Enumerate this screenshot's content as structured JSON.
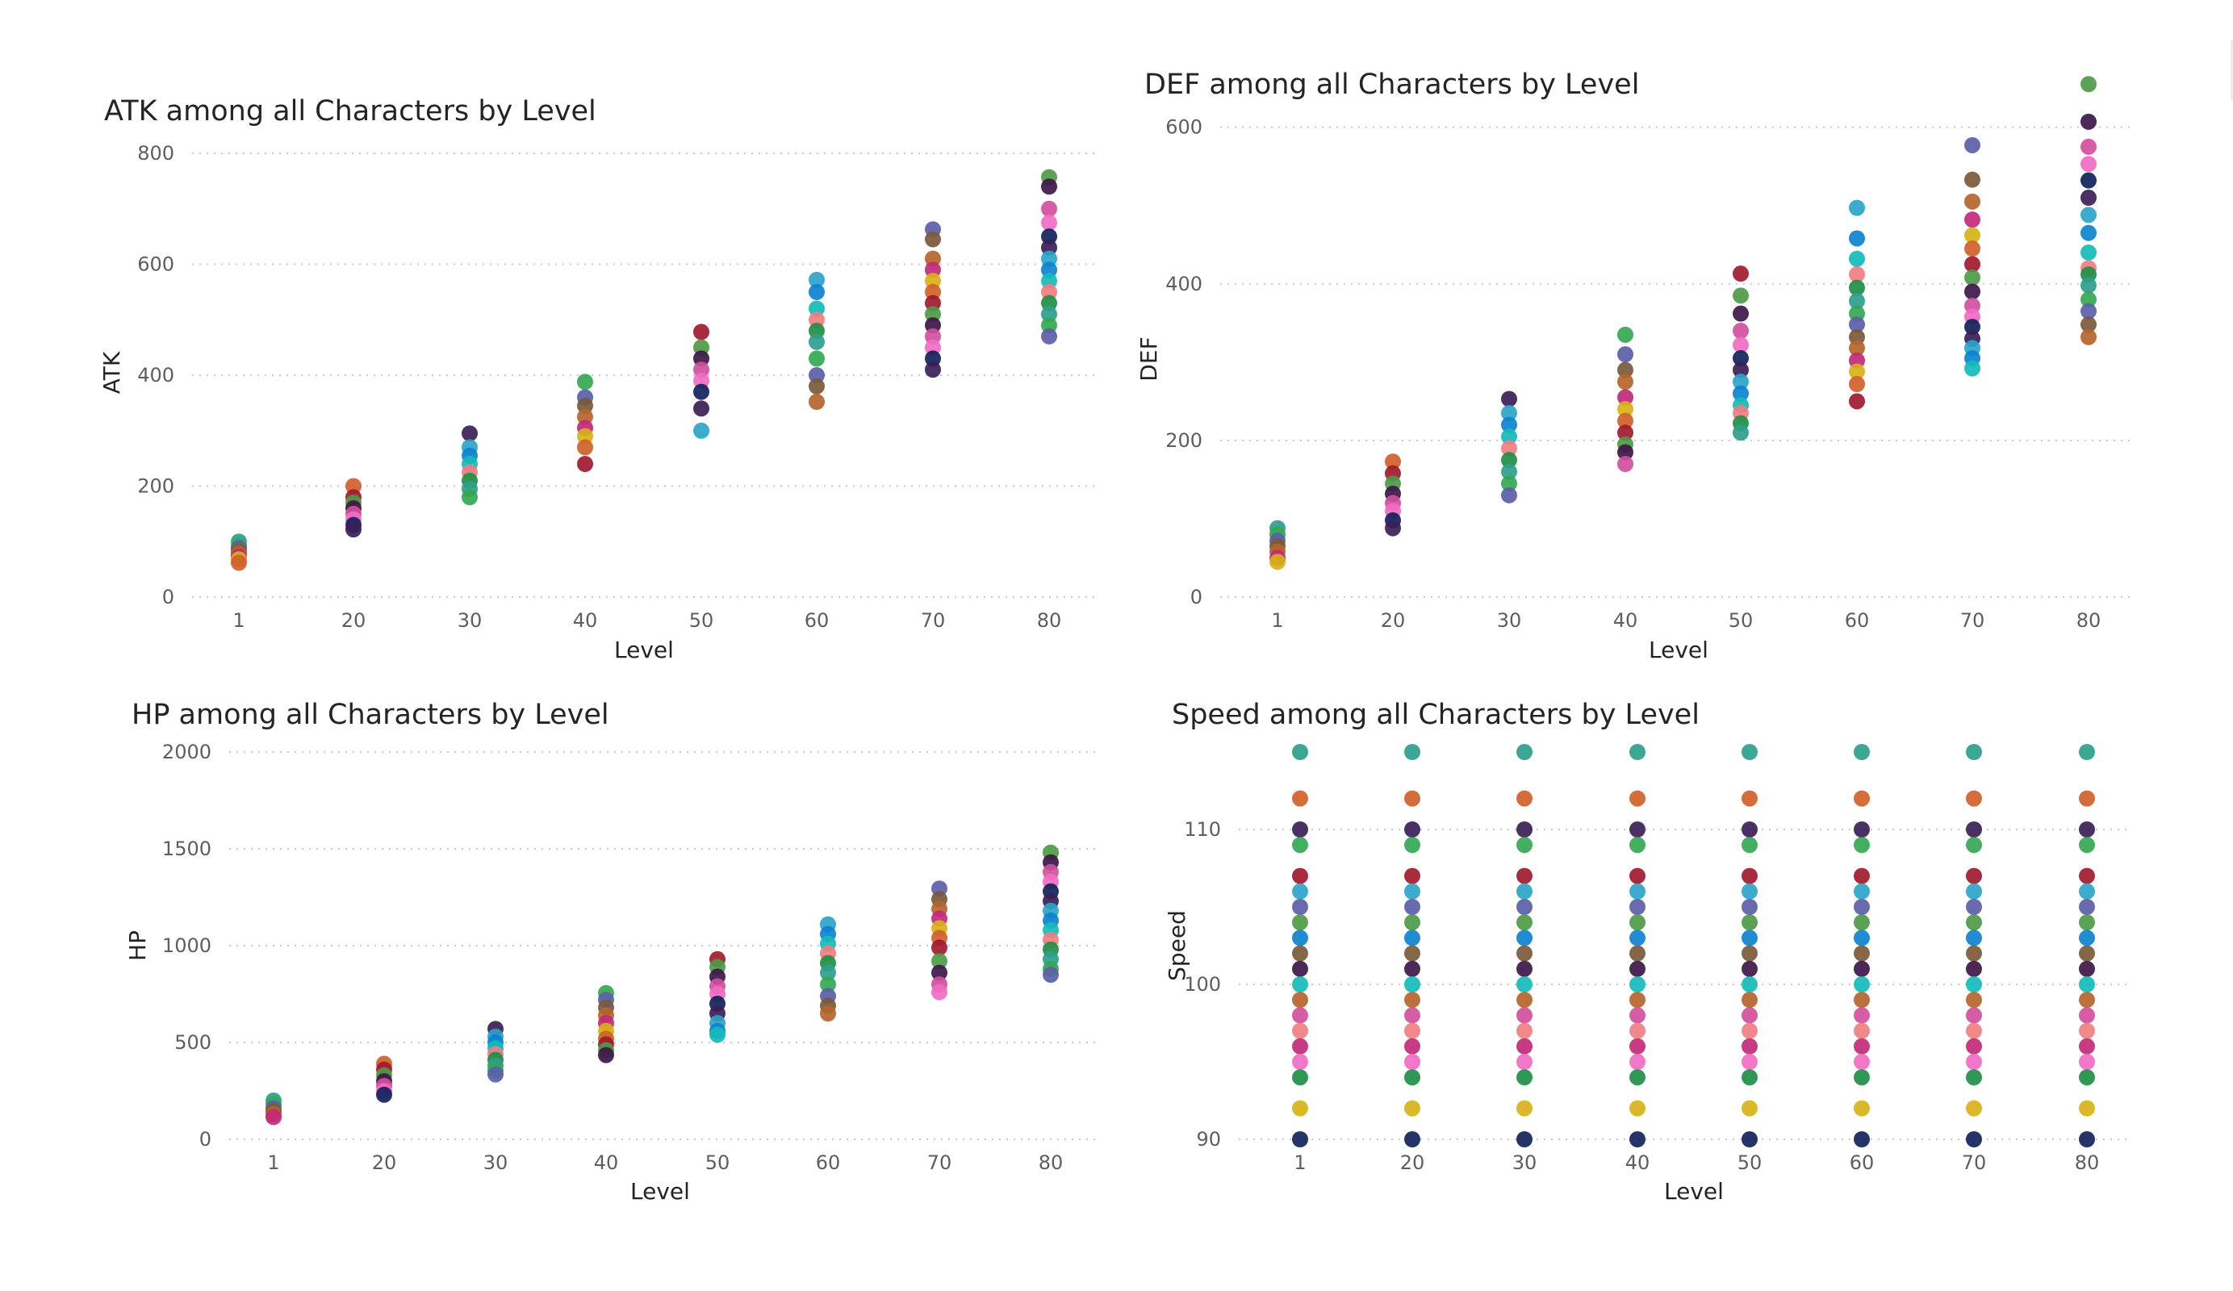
{
  "charts": [
    {
      "title": "ATK among all Characters by Level",
      "xlabel": "Level",
      "ylabel": "ATK",
      "x_ticks": [
        "1",
        "20",
        "30",
        "40",
        "50",
        "60",
        "70",
        "80"
      ],
      "y_ticks": [
        0,
        200,
        400,
        600,
        800
      ],
      "ylim": [
        0,
        800
      ],
      "points": [
        [
          100,
          92,
          88,
          83,
          78,
          73,
          68,
          62
        ],
        [
          200,
          180,
          170,
          160,
          150,
          140,
          130,
          122
        ],
        [
          295,
          270,
          255,
          240,
          225,
          210,
          195,
          180
        ],
        [
          388,
          360,
          345,
          325,
          305,
          290,
          270,
          240
        ],
        [
          478,
          450,
          430,
          410,
          390,
          370,
          340,
          300
        ],
        [
          572,
          550,
          520,
          500,
          480,
          460,
          430,
          400,
          380,
          352
        ],
        [
          663,
          645,
          610,
          590,
          570,
          550,
          530,
          510,
          490,
          470,
          450,
          430,
          410
        ],
        [
          757,
          740,
          700,
          675,
          650,
          630,
          610,
          590,
          570,
          550,
          530,
          510,
          490,
          470
        ]
      ]
    },
    {
      "title": "DEF among all Characters by Level",
      "xlabel": "Level",
      "ylabel": "DEF",
      "x_ticks": [
        "1",
        "20",
        "30",
        "40",
        "50",
        "60",
        "70",
        "80"
      ],
      "y_ticks": [
        0,
        200,
        400,
        600
      ],
      "ylim": [
        0,
        680
      ],
      "points": [
        [
          88,
          80,
          72,
          65,
          58,
          50,
          45
        ],
        [
          173,
          158,
          145,
          132,
          120,
          110,
          98,
          88
        ],
        [
          253,
          235,
          220,
          205,
          190,
          175,
          160,
          145,
          130
        ],
        [
          335,
          310,
          290,
          275,
          255,
          240,
          225,
          210,
          195,
          185,
          170
        ],
        [
          413,
          385,
          362,
          340,
          322,
          305,
          290,
          275,
          260,
          245,
          235,
          222,
          210
        ],
        [
          497,
          458,
          432,
          412,
          395,
          378,
          362,
          348,
          332,
          318,
          302,
          288,
          272,
          250
        ],
        [
          577,
          533,
          505,
          482,
          462,
          445,
          425,
          408,
          390,
          372,
          358,
          345,
          330,
          318,
          305,
          292
        ],
        [
          655,
          607,
          575,
          553,
          532,
          510,
          488,
          465,
          440,
          420,
          412,
          398,
          380,
          365,
          348,
          332
        ]
      ]
    },
    {
      "title": "HP among all Characters by Level",
      "xlabel": "Level",
      "ylabel": "HP",
      "x_ticks": [
        "1",
        "20",
        "30",
        "40",
        "50",
        "60",
        "70",
        "80"
      ],
      "y_ticks": [
        0,
        500,
        1000,
        1500,
        2000
      ],
      "ylim": [
        0,
        2000
      ],
      "points": [
        [
          200,
          180,
          160,
          145,
          130,
          115
        ],
        [
          390,
          360,
          330,
          300,
          275,
          250,
          230
        ],
        [
          570,
          530,
          500,
          470,
          440,
          410,
          380,
          355,
          335
        ],
        [
          755,
          720,
          680,
          640,
          600,
          560,
          520,
          490,
          460,
          435
        ],
        [
          930,
          890,
          840,
          790,
          750,
          700,
          650,
          600,
          560,
          540
        ],
        [
          1110,
          1060,
          1010,
          960,
          910,
          860,
          800,
          740,
          690,
          650
        ],
        [
          1295,
          1240,
          1190,
          1140,
          1090,
          1040,
          990,
          920,
          860,
          800,
          760
        ],
        [
          1480,
          1430,
          1380,
          1330,
          1280,
          1230,
          1180,
          1130,
          1080,
          1030,
          980,
          930,
          880,
          850
        ]
      ]
    },
    {
      "title": "Speed among all Characters by Level",
      "xlabel": "Level",
      "ylabel": "Speed",
      "x_ticks": [
        "1",
        "20",
        "30",
        "40",
        "50",
        "60",
        "70",
        "80"
      ],
      "y_ticks": [
        90,
        100,
        110
      ],
      "ylim": [
        90,
        115
      ],
      "speeds": [
        115,
        112,
        110,
        109,
        107,
        106,
        105,
        104,
        103,
        102,
        101,
        100,
        99,
        98,
        97,
        96,
        95,
        94,
        92,
        90
      ]
    }
  ],
  "colors": [
    "#2E9E8C",
    "#D0602B",
    "#3A1F56",
    "#34A853",
    "#A01A2E",
    "#2BA4C9",
    "#5B5FA8",
    "#4E9A45",
    "#0C82D0",
    "#7A5A3A",
    "#3E174A",
    "#14BBB8",
    "#B5642C",
    "#D14F9D",
    "#F07E82",
    "#C2297A",
    "#F06DC4",
    "#1E8F45",
    "#D7B217",
    "#12235B"
  ]
}
